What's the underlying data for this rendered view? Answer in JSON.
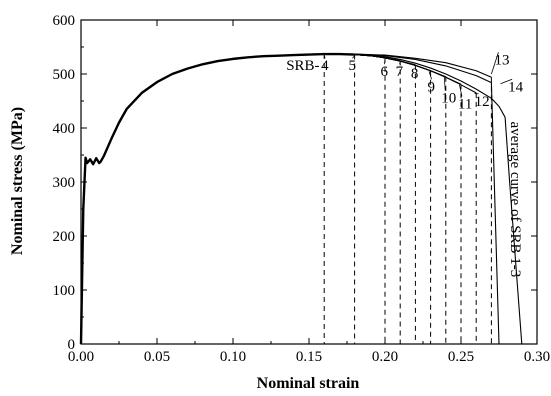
{
  "chart_data": {
    "type": "line",
    "title": "",
    "xlabel": "Nominal strain",
    "ylabel": "Nominal stress (MPa)",
    "xlim": [
      0.0,
      0.3
    ],
    "ylim": [
      0,
      600
    ],
    "xticks": [
      0.0,
      0.05,
      0.1,
      0.15,
      0.2,
      0.25,
      0.3
    ],
    "xtick_labels": [
      "0.00",
      "0.05",
      "0.10",
      "0.15",
      "0.20",
      "0.25",
      "0.30"
    ],
    "yticks": [
      0,
      100,
      200,
      300,
      400,
      500,
      600
    ],
    "ytick_labels": [
      "0",
      "100",
      "200",
      "300",
      "400",
      "500",
      "600"
    ],
    "grid": false,
    "legend": "none",
    "base_curve": {
      "x": [
        0.0,
        0.0015,
        0.003,
        0.004,
        0.006,
        0.008,
        0.01,
        0.012,
        0.013,
        0.015,
        0.02,
        0.025,
        0.03,
        0.04,
        0.05,
        0.06,
        0.07,
        0.08,
        0.09,
        0.1,
        0.11,
        0.12,
        0.13,
        0.14,
        0.15,
        0.16,
        0.17,
        0.18
      ],
      "y": [
        0,
        250,
        345,
        335,
        342,
        333,
        344,
        335,
        338,
        348,
        380,
        410,
        435,
        465,
        485,
        500,
        510,
        518,
        524,
        528,
        531,
        533,
        534,
        535,
        536,
        537,
        537,
        536
      ]
    },
    "series": [
      {
        "name": "average curve of SRB 1-3",
        "x": [
          0.18,
          0.19,
          0.2,
          0.21,
          0.22,
          0.23,
          0.24,
          0.25,
          0.26,
          0.27,
          0.275,
          0.279,
          0.282,
          0.286,
          0.29
        ],
        "y": [
          536,
          535,
          532,
          527,
          520,
          511,
          500,
          487,
          472,
          455,
          440,
          420,
          300,
          150,
          0
        ]
      },
      {
        "name": "SRB-4",
        "x": [
          0.16,
          0.16
        ],
        "y": [
          537,
          0
        ]
      },
      {
        "name": "SRB-5",
        "x": [
          0.18,
          0.18
        ],
        "y": [
          536,
          0
        ]
      },
      {
        "name": "SRB-6",
        "x": [
          0.18,
          0.19,
          0.2,
          0.2
        ],
        "y": [
          536,
          534,
          530,
          0
        ]
      },
      {
        "name": "SRB-7",
        "x": [
          0.18,
          0.19,
          0.2,
          0.21,
          0.21
        ],
        "y": [
          536,
          534,
          530,
          525,
          0
        ]
      },
      {
        "name": "SRB-8",
        "x": [
          0.18,
          0.19,
          0.2,
          0.21,
          0.22,
          0.22
        ],
        "y": [
          536,
          534,
          530,
          524,
          517,
          0
        ]
      },
      {
        "name": "SRB-9",
        "x": [
          0.18,
          0.19,
          0.2,
          0.21,
          0.22,
          0.23,
          0.23
        ],
        "y": [
          536,
          534,
          530,
          524,
          516,
          506,
          0
        ]
      },
      {
        "name": "SRB-10",
        "x": [
          0.18,
          0.19,
          0.2,
          0.21,
          0.22,
          0.23,
          0.24,
          0.24
        ],
        "y": [
          536,
          534,
          530,
          524,
          516,
          506,
          495,
          0
        ]
      },
      {
        "name": "SRB-11",
        "x": [
          0.18,
          0.19,
          0.2,
          0.21,
          0.22,
          0.23,
          0.24,
          0.25,
          0.25
        ],
        "y": [
          536,
          534,
          530,
          524,
          516,
          506,
          494,
          481,
          0
        ]
      },
      {
        "name": "SRB-12",
        "x": [
          0.18,
          0.19,
          0.2,
          0.21,
          0.22,
          0.23,
          0.24,
          0.25,
          0.26,
          0.26
        ],
        "y": [
          536,
          534,
          530,
          524,
          516,
          506,
          494,
          480,
          465,
          0
        ]
      },
      {
        "name": "SRB-13",
        "x": [
          0.18,
          0.2,
          0.22,
          0.24,
          0.26,
          0.27,
          0.27
        ],
        "y": [
          537,
          535,
          529,
          521,
          506,
          494,
          0
        ]
      },
      {
        "name": "SRB-14",
        "x": [
          0.18,
          0.2,
          0.22,
          0.24,
          0.26,
          0.27,
          0.275
        ],
        "y": [
          537,
          534,
          527,
          515,
          497,
          484,
          0
        ]
      }
    ],
    "annotations": [
      {
        "text": "SRB-",
        "x": 0.135,
        "y": 507
      },
      {
        "text": "4",
        "x": 0.158,
        "y": 507,
        "lx": 0.16,
        "ly": 535
      },
      {
        "text": "5",
        "x": 0.176,
        "y": 507,
        "lx": 0.18,
        "ly": 534
      },
      {
        "text": "6",
        "x": 0.197,
        "y": 496,
        "lx": 0.2,
        "ly": 528
      },
      {
        "text": "7",
        "x": 0.207,
        "y": 496,
        "lx": 0.21,
        "ly": 523
      },
      {
        "text": "8",
        "x": 0.217,
        "y": 493,
        "lx": 0.22,
        "ly": 516
      },
      {
        "text": "9",
        "x": 0.228,
        "y": 468,
        "lx": 0.229,
        "ly": 505
      },
      {
        "text": "10",
        "x": 0.237,
        "y": 447,
        "lx": 0.239,
        "ly": 494
      },
      {
        "text": "11",
        "x": 0.248,
        "y": 436,
        "lx": 0.249,
        "ly": 480
      },
      {
        "text": "12",
        "x": 0.259,
        "y": 441,
        "lx": 0.259,
        "ly": 464
      },
      {
        "text": "13",
        "x": 0.272,
        "y": 518,
        "lx": 0.27,
        "ly": 500
      },
      {
        "text": "14",
        "x": 0.281,
        "y": 468,
        "lx": 0.276,
        "ly": 482
      }
    ],
    "curve_label": {
      "text": "average curve of SRB 1-3",
      "x": 0.283,
      "y": 412,
      "rotation": 90
    }
  }
}
